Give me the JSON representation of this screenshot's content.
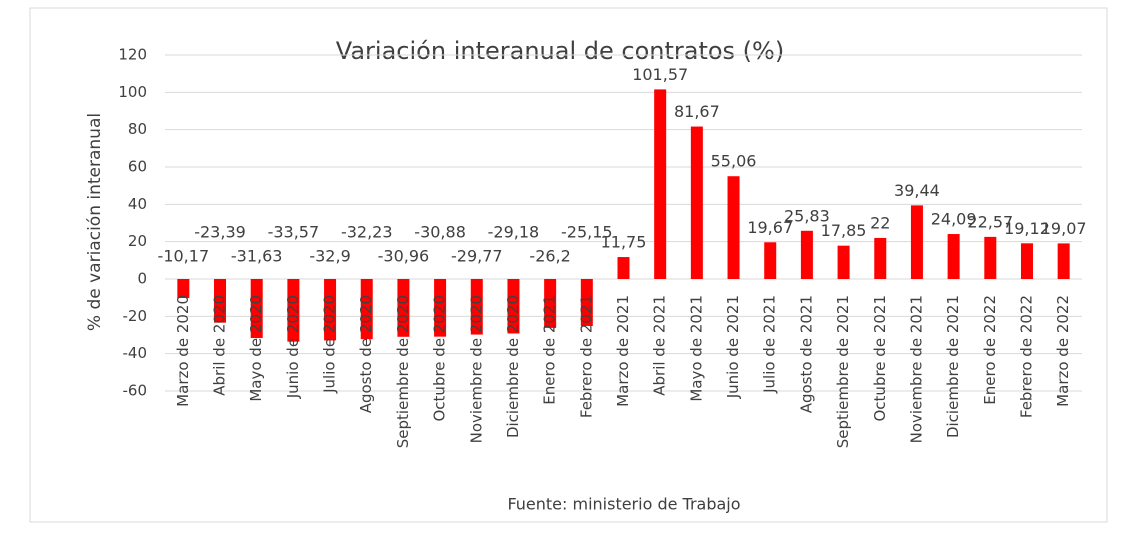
{
  "chart_data": {
    "type": "bar",
    "title": "Variación interanual de contratos  (%)",
    "y_label": "% de variación interanual",
    "source": "Fuente: ministerio de Trabajo",
    "categories": [
      "Marzo de 2020",
      "Abril de 2020",
      "Mayo de 2020",
      "Junio de 2020",
      "Julio de 2020",
      "Agosto de 2020",
      "Septiembre de 2020",
      "Octubre de 2020",
      "Noviembre de 2020",
      "Diciembre de 2020",
      "Enero de 2021",
      "Febrero de 2021",
      "Marzo de 2021",
      "Abril de 2021",
      "Mayo de 2021",
      "Junio de 2021",
      "Julio de 2021",
      "Agosto de 2021",
      "Septiembre de 2021",
      "Octubre de 2021",
      "Noviembre de 2021",
      "Diciembre de 2021",
      "Enero de 2022",
      "Febrero de 2022",
      "Marzo de 2022"
    ],
    "values": [
      -10.17,
      -23.39,
      -31.63,
      -33.57,
      -32.9,
      -32.23,
      -30.96,
      -30.88,
      -29.77,
      -29.18,
      -26.2,
      -25.15,
      11.75,
      101.57,
      81.67,
      55.06,
      19.67,
      25.83,
      17.85,
      22,
      39.44,
      24.09,
      22.57,
      19.12,
      19.07
    ],
    "value_labels": [
      "-10,17",
      "-23,39",
      "-31,63",
      "-33,57",
      "-32,9",
      "-32,23",
      "-30,96",
      "-30,88",
      "-29,77",
      "-29,18",
      "-26,2",
      "-25,15",
      "11,75",
      "101,57",
      "81,67",
      "55,06",
      "19,67",
      "25,83",
      "17,85",
      "22",
      "39,44",
      "24,09",
      "22,57",
      "19,12",
      "19,07"
    ],
    "color": "#ff0000",
    "ylim": [
      -60,
      120
    ],
    "yticks": [
      -60,
      -40,
      -20,
      0,
      20,
      40,
      60,
      80,
      100,
      120
    ],
    "grid": true
  }
}
